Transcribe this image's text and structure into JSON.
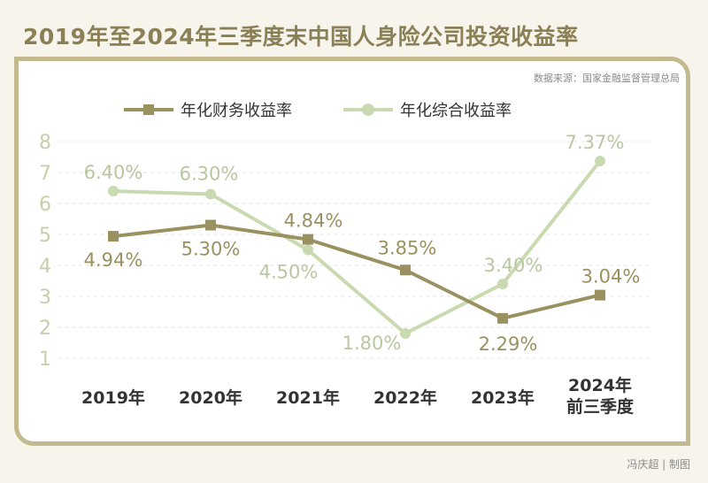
{
  "title": "2019年至2024年三季度末中国人身险公司投资收益率",
  "source": "数据来源：国家金融监督管理总局",
  "credit": "冯庆超 | 制图",
  "colors": {
    "series1": "#9a9160",
    "series2": "#c9d9b0",
    "accent": "#8a7f55",
    "border": "#c3b98f",
    "ytick": "#c6cfa8",
    "xtick": "#333333"
  },
  "chart_data": {
    "type": "line",
    "categories": [
      "2019年",
      "2020年",
      "2021年",
      "2022年",
      "2023年",
      "2024年\n前三季度"
    ],
    "series": [
      {
        "name": "年化财务收益率",
        "values": [
          4.94,
          5.3,
          4.84,
          3.85,
          2.29,
          3.04
        ],
        "labels": [
          "4.94%",
          "5.30%",
          "4.84%",
          "3.85%",
          "2.29%",
          "3.04%"
        ]
      },
      {
        "name": "年化综合收益率",
        "values": [
          6.4,
          6.3,
          4.5,
          1.8,
          3.4,
          7.37
        ],
        "labels": [
          "6.40%",
          "6.30%",
          "4.50%",
          "1.80%",
          "3.40%",
          "7.37%"
        ]
      }
    ],
    "yticks": [
      1,
      2,
      3,
      4,
      5,
      6,
      7,
      8
    ],
    "ylim": [
      0,
      8
    ],
    "grid": true,
    "legend": "top-left"
  }
}
